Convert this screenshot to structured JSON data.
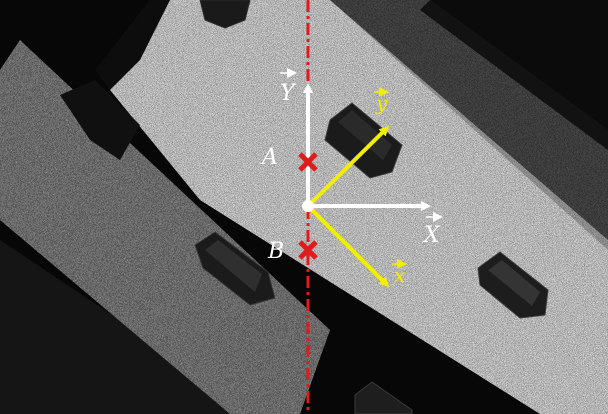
{
  "labels": {
    "axis_Y": "Y",
    "axis_X": "X",
    "axis_y": "y",
    "axis_x": "x",
    "point_A": "A",
    "point_B": "B"
  },
  "colors": {
    "dashed_line": "#e01b1b",
    "markers": "#e01b1b",
    "global_axes": "#ffffff",
    "local_axes": "#f2ee00",
    "axis_label_white": "#ffffff",
    "axis_label_yellow": "#f2ee00"
  }
}
